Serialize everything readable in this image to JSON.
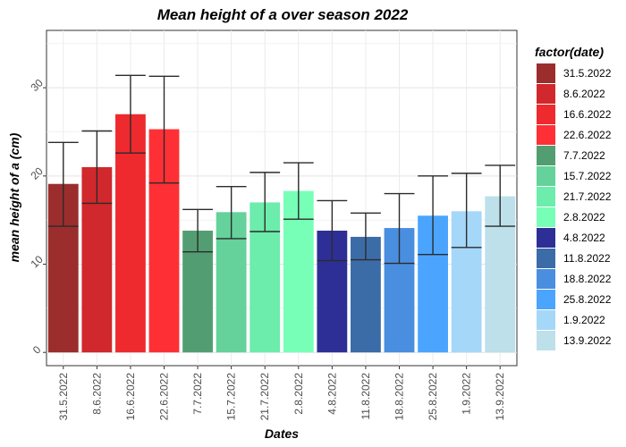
{
  "chart_data": {
    "type": "bar",
    "title": "Mean height of a over season 2022",
    "xlabel": "Dates",
    "ylabel": "mean height of a (cm)",
    "ylim": [
      -1.5,
      36.5
    ],
    "yticks": [
      0,
      10,
      20,
      30
    ],
    "grid": true,
    "legend_title": "factor(date)",
    "legend_position": "right",
    "categories": [
      "31.5.2022",
      "8.6.2022",
      "16.6.2022",
      "22.6.2022",
      "7.7.2022",
      "15.7.2022",
      "21.7.2022",
      "2.8.2022",
      "4.8.2022",
      "11.8.2022",
      "18.8.2022",
      "25.8.2022",
      "1.9.2022",
      "13.9.2022"
    ],
    "values": [
      19.1,
      21.0,
      27.0,
      25.3,
      13.8,
      15.9,
      17.0,
      18.3,
      13.8,
      13.1,
      14.1,
      15.5,
      16.0,
      17.7
    ],
    "err_low": [
      14.3,
      16.9,
      22.6,
      19.2,
      11.4,
      12.9,
      13.7,
      15.1,
      10.4,
      10.5,
      10.1,
      11.1,
      11.9,
      14.3
    ],
    "err_high": [
      23.8,
      25.1,
      31.4,
      31.3,
      16.2,
      18.8,
      20.4,
      21.5,
      17.2,
      15.8,
      18.0,
      20.0,
      20.3,
      21.2
    ],
    "colors": [
      "#9b2d2d",
      "#d0282c",
      "#ee2a2f",
      "#ff3035",
      "#529e72",
      "#64d29a",
      "#6cedab",
      "#77ffb8",
      "#2e2f96",
      "#3c6ca8",
      "#4a8ee0",
      "#4ba5ff",
      "#a5d7f9",
      "#bde0ea"
    ]
  }
}
